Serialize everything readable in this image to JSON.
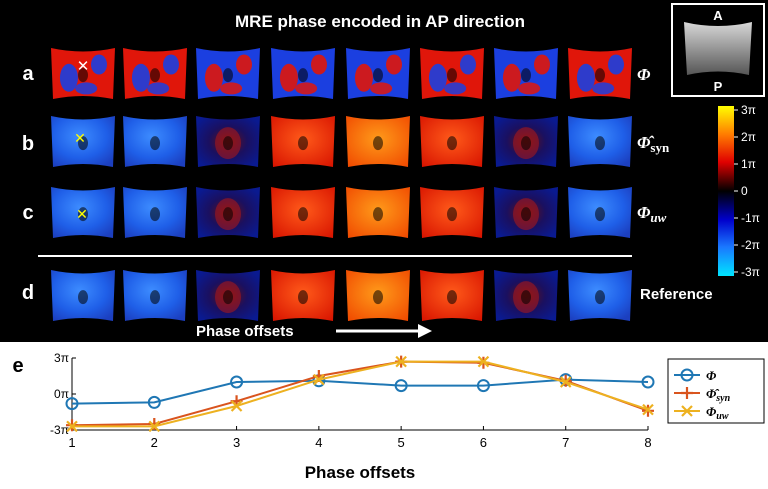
{
  "figure": {
    "title": "MRE phase encoded in AP direction",
    "row_labels": [
      "a",
      "b",
      "c",
      "d"
    ],
    "row_symbols": [
      "Φ",
      "Φ̂",
      "Φ",
      "Reference"
    ],
    "row_symbol_subscripts": [
      "",
      "syn",
      "uw",
      ""
    ],
    "inset": {
      "top_label": "A",
      "bottom_label": "P"
    },
    "phase_offsets_label": "Phase offsets",
    "colorbar_ticks": [
      "3π",
      "2π",
      "1π",
      "0",
      "-1π",
      "-2π",
      "-3π"
    ],
    "panel_e_label": "e",
    "colors": {
      "background": "#000000",
      "positive_phase": "#ff2a00",
      "negative_phase": "#1e5cff",
      "marker_white": "#ffffff",
      "marker_yellow": "#ffff00"
    },
    "images": [
      [
        "red-blue wrapped",
        "red-blue wrapped",
        "blue-red wrapped",
        "blue-red wrapped",
        "blue-red wrapped",
        "red-blue wrapped",
        "blue-red wrapped",
        "red-blue wrapped"
      ],
      [
        "blue",
        "blue",
        "dark",
        "red",
        "orange",
        "red",
        "dark",
        "blue"
      ],
      [
        "blue",
        "blue",
        "dark",
        "red",
        "orange",
        "red",
        "dark",
        "blue"
      ],
      [
        "blue",
        "blue",
        "dark",
        "red",
        "orange",
        "red",
        "dark",
        "blue"
      ]
    ]
  },
  "chart_data": {
    "type": "line",
    "x": [
      1,
      2,
      3,
      4,
      5,
      6,
      7,
      8
    ],
    "xlabel": "Phase offsets",
    "ylabel": "",
    "ylim": [
      -3,
      3
    ],
    "yticks": [
      -3,
      0,
      3
    ],
    "ytick_labels": [
      "-3π",
      "0π",
      "3π"
    ],
    "legend_position": "right",
    "series": [
      {
        "name": "Φ",
        "subscript": "",
        "marker": "circle",
        "color": "#1f77b4",
        "values": [
          -0.8,
          -0.7,
          1.0,
          1.1,
          0.7,
          0.7,
          1.2,
          1.0
        ]
      },
      {
        "name": "Φ̂",
        "subscript": "syn",
        "marker": "plus",
        "color": "#d9541e",
        "values": [
          -2.6,
          -2.5,
          -0.6,
          1.5,
          2.7,
          2.6,
          1.1,
          -1.4
        ]
      },
      {
        "name": "Φ",
        "subscript": "uw",
        "marker": "x",
        "color": "#edb120",
        "values": [
          -2.7,
          -2.7,
          -1.0,
          1.2,
          2.7,
          2.7,
          1.0,
          -1.3
        ]
      }
    ]
  }
}
